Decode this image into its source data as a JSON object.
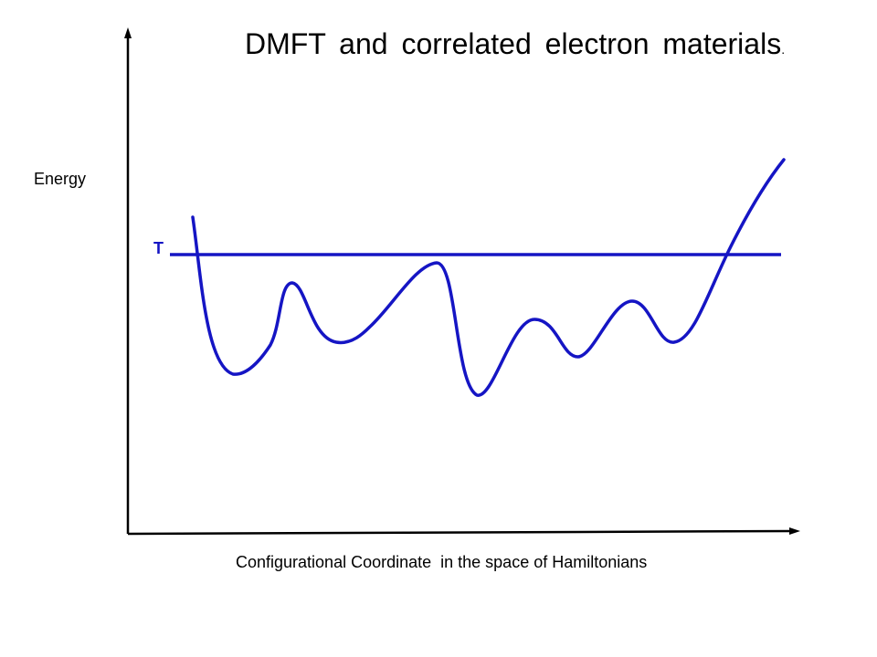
{
  "diagram": {
    "title": "DMFT and correlated electron materials",
    "title_period": ".",
    "y_axis_label": "Energy",
    "x_axis_label": "Configurational Coordinate  in the space of Hamiltonians",
    "threshold_label": "T",
    "curve_color": "#1515c4",
    "axis_color": "#000000"
  }
}
